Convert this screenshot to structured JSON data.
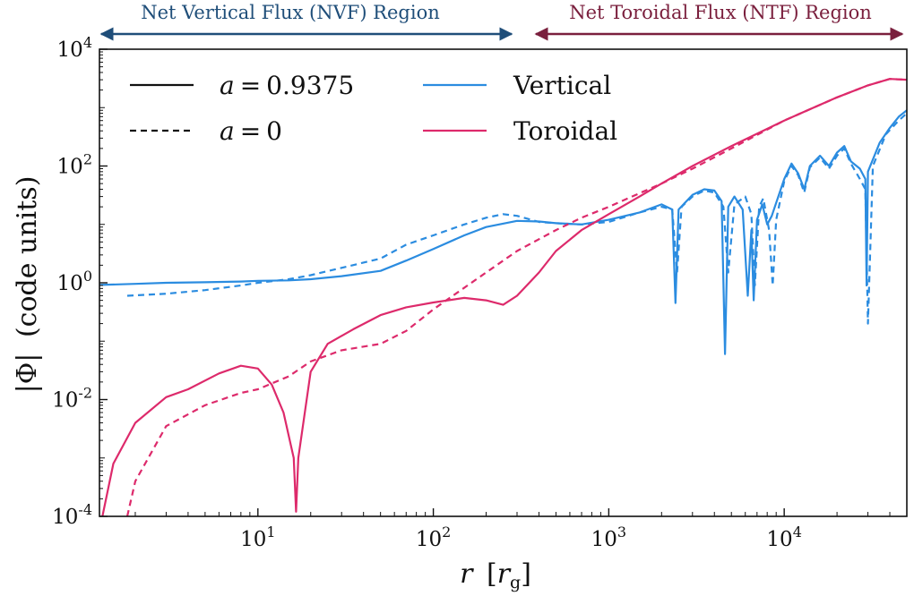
{
  "chart_data": {
    "type": "line",
    "xscale": "log",
    "yscale": "log",
    "xlim": [
      1.25,
      50000
    ],
    "ylim": [
      0.0001,
      10000
    ],
    "xlabel": {
      "symbol": "r",
      "unit": "r",
      "unit_sub": "g"
    },
    "ylabel": {
      "symbol": "|Φ|",
      "text": "(code units)"
    },
    "x_ticks": [
      {
        "value": 10,
        "base": "10",
        "exp": "1"
      },
      {
        "value": 100,
        "base": "10",
        "exp": "2"
      },
      {
        "value": 1000,
        "base": "10",
        "exp": "3"
      },
      {
        "value": 10000,
        "base": "10",
        "exp": "4"
      }
    ],
    "y_ticks": [
      {
        "value": 0.0001,
        "base": "10",
        "exp": "-4"
      },
      {
        "value": 0.01,
        "base": "10",
        "exp": "-2"
      },
      {
        "value": 1,
        "base": "10",
        "exp": "0"
      },
      {
        "value": 100,
        "base": "10",
        "exp": "2"
      },
      {
        "value": 10000,
        "base": "10",
        "exp": "4"
      }
    ],
    "regions": [
      {
        "label": "Net Vertical Flux (NVF) Region",
        "x_start": 1.25,
        "x_end": 300,
        "color": "#1f4e79"
      },
      {
        "label": "Net Toroidal Flux (NTF) Region",
        "x_start": 400,
        "x_end": 50000,
        "color": "#7a1f3d"
      }
    ],
    "legend": {
      "placement": "top-left",
      "spin_entries": [
        {
          "label_var": "a",
          "label_val": "0.9375",
          "style": "solid"
        },
        {
          "label_var": "a",
          "label_val": "0",
          "style": "dashed"
        }
      ],
      "component_entries": [
        {
          "label": "Vertical",
          "color": "#2b8ce0"
        },
        {
          "label": "Toroidal",
          "color": "#dd2a6b"
        }
      ]
    },
    "series": [
      {
        "name": "Vertical, a = 0.9375",
        "component": "vertical",
        "spin": "0.9375",
        "style": "solid",
        "color": "#2b8ce0",
        "points": [
          [
            1.25,
            0.92
          ],
          [
            2,
            0.96
          ],
          [
            3,
            1.0
          ],
          [
            5,
            1.02
          ],
          [
            8,
            1.05
          ],
          [
            10,
            1.08
          ],
          [
            15,
            1.1
          ],
          [
            20,
            1.15
          ],
          [
            30,
            1.3
          ],
          [
            50,
            1.6
          ],
          [
            70,
            2.4
          ],
          [
            100,
            3.8
          ],
          [
            150,
            6.5
          ],
          [
            200,
            9.0
          ],
          [
            300,
            11.5
          ],
          [
            400,
            11.2
          ],
          [
            500,
            10.5
          ],
          [
            700,
            10.0
          ],
          [
            1000,
            12
          ],
          [
            1500,
            16
          ],
          [
            2000,
            22
          ],
          [
            2300,
            18
          ],
          [
            2400,
            0.45
          ],
          [
            2500,
            18
          ],
          [
            3000,
            32
          ],
          [
            3500,
            40
          ],
          [
            4000,
            38
          ],
          [
            4400,
            25
          ],
          [
            4600,
            0.06
          ],
          [
            4800,
            20
          ],
          [
            5200,
            30
          ],
          [
            5800,
            18
          ],
          [
            6200,
            0.6
          ],
          [
            6500,
            8
          ],
          [
            6700,
            0.5
          ],
          [
            7000,
            12
          ],
          [
            7500,
            22
          ],
          [
            8000,
            10
          ],
          [
            8500,
            14
          ],
          [
            10000,
            60
          ],
          [
            11000,
            110
          ],
          [
            12000,
            75
          ],
          [
            13000,
            40
          ],
          [
            14000,
            100
          ],
          [
            16000,
            150
          ],
          [
            18000,
            100
          ],
          [
            20000,
            170
          ],
          [
            22000,
            220
          ],
          [
            24000,
            120
          ],
          [
            27000,
            90
          ],
          [
            29000,
            60
          ],
          [
            29500,
            0.9
          ],
          [
            30000,
            80
          ],
          [
            35000,
            250
          ],
          [
            40000,
            450
          ],
          [
            45000,
            700
          ],
          [
            50000,
            900
          ]
        ]
      },
      {
        "name": "Vertical, a = 0",
        "component": "vertical",
        "spin": "0",
        "style": "dashed",
        "color": "#2b8ce0",
        "points": [
          [
            1.8,
            0.6
          ],
          [
            3,
            0.65
          ],
          [
            5,
            0.75
          ],
          [
            8,
            0.9
          ],
          [
            10,
            1.0
          ],
          [
            15,
            1.15
          ],
          [
            20,
            1.35
          ],
          [
            30,
            1.8
          ],
          [
            50,
            2.6
          ],
          [
            70,
            4.5
          ],
          [
            100,
            6.5
          ],
          [
            150,
            10
          ],
          [
            200,
            13
          ],
          [
            250,
            15
          ],
          [
            300,
            14
          ],
          [
            400,
            11
          ],
          [
            500,
            10.5
          ],
          [
            700,
            10
          ],
          [
            1000,
            11
          ],
          [
            1500,
            16
          ],
          [
            2000,
            20
          ],
          [
            2300,
            18
          ],
          [
            2450,
            1.5
          ],
          [
            2600,
            20
          ],
          [
            3000,
            30
          ],
          [
            3500,
            38
          ],
          [
            4000,
            35
          ],
          [
            4500,
            20
          ],
          [
            4800,
            1.5
          ],
          [
            5200,
            22
          ],
          [
            6000,
            30
          ],
          [
            6500,
            15
          ],
          [
            6800,
            0.9
          ],
          [
            7200,
            20
          ],
          [
            7600,
            28
          ],
          [
            8200,
            8
          ],
          [
            8600,
            0.9
          ],
          [
            9000,
            12
          ],
          [
            10000,
            55
          ],
          [
            11000,
            100
          ],
          [
            12000,
            70
          ],
          [
            13000,
            35
          ],
          [
            14000,
            95
          ],
          [
            16000,
            140
          ],
          [
            18000,
            90
          ],
          [
            20000,
            150
          ],
          [
            22000,
            200
          ],
          [
            24000,
            110
          ],
          [
            27000,
            60
          ],
          [
            29000,
            40
          ],
          [
            30000,
            0.2
          ],
          [
            32000,
            100
          ],
          [
            38000,
            350
          ],
          [
            45000,
            600
          ],
          [
            50000,
            800
          ]
        ]
      },
      {
        "name": "Toroidal, a = 0.9375",
        "component": "toroidal",
        "spin": "0.9375",
        "style": "solid",
        "color": "#dd2a6b",
        "points": [
          [
            1.3,
            0.0001
          ],
          [
            1.5,
            0.0008
          ],
          [
            2,
            0.004
          ],
          [
            3,
            0.011
          ],
          [
            4,
            0.015
          ],
          [
            6,
            0.028
          ],
          [
            8,
            0.038
          ],
          [
            10,
            0.034
          ],
          [
            12,
            0.018
          ],
          [
            14,
            0.006
          ],
          [
            16,
            0.001
          ],
          [
            16.5,
            0.00012
          ],
          [
            17,
            0.001
          ],
          [
            20,
            0.03
          ],
          [
            25,
            0.09
          ],
          [
            35,
            0.16
          ],
          [
            50,
            0.28
          ],
          [
            70,
            0.38
          ],
          [
            100,
            0.46
          ],
          [
            150,
            0.55
          ],
          [
            200,
            0.5
          ],
          [
            250,
            0.42
          ],
          [
            300,
            0.6
          ],
          [
            400,
            1.5
          ],
          [
            500,
            3.5
          ],
          [
            700,
            8
          ],
          [
            1000,
            15
          ],
          [
            1500,
            30
          ],
          [
            2000,
            50
          ],
          [
            3000,
            100
          ],
          [
            5000,
            220
          ],
          [
            10000,
            600
          ],
          [
            20000,
            1500
          ],
          [
            30000,
            2400
          ],
          [
            40000,
            3100
          ],
          [
            50000,
            3000
          ]
        ]
      },
      {
        "name": "Toroidal, a = 0",
        "component": "toroidal",
        "spin": "0",
        "style": "dashed",
        "color": "#dd2a6b",
        "points": [
          [
            1.8,
            0.0001
          ],
          [
            2,
            0.0004
          ],
          [
            3,
            0.0035
          ],
          [
            5,
            0.008
          ],
          [
            8,
            0.013
          ],
          [
            10,
            0.015
          ],
          [
            15,
            0.025
          ],
          [
            20,
            0.045
          ],
          [
            30,
            0.07
          ],
          [
            50,
            0.09
          ],
          [
            70,
            0.15
          ],
          [
            100,
            0.35
          ],
          [
            200,
            1.5
          ],
          [
            300,
            3.5
          ],
          [
            500,
            8
          ],
          [
            700,
            13
          ],
          [
            1000,
            20
          ],
          [
            2000,
            50
          ],
          [
            3000,
            90
          ],
          [
            5000,
            200
          ],
          [
            10000,
            600
          ],
          [
            20000,
            1500
          ],
          [
            30000,
            2400
          ],
          [
            40000,
            3100
          ],
          [
            50000,
            3000
          ]
        ]
      }
    ]
  }
}
